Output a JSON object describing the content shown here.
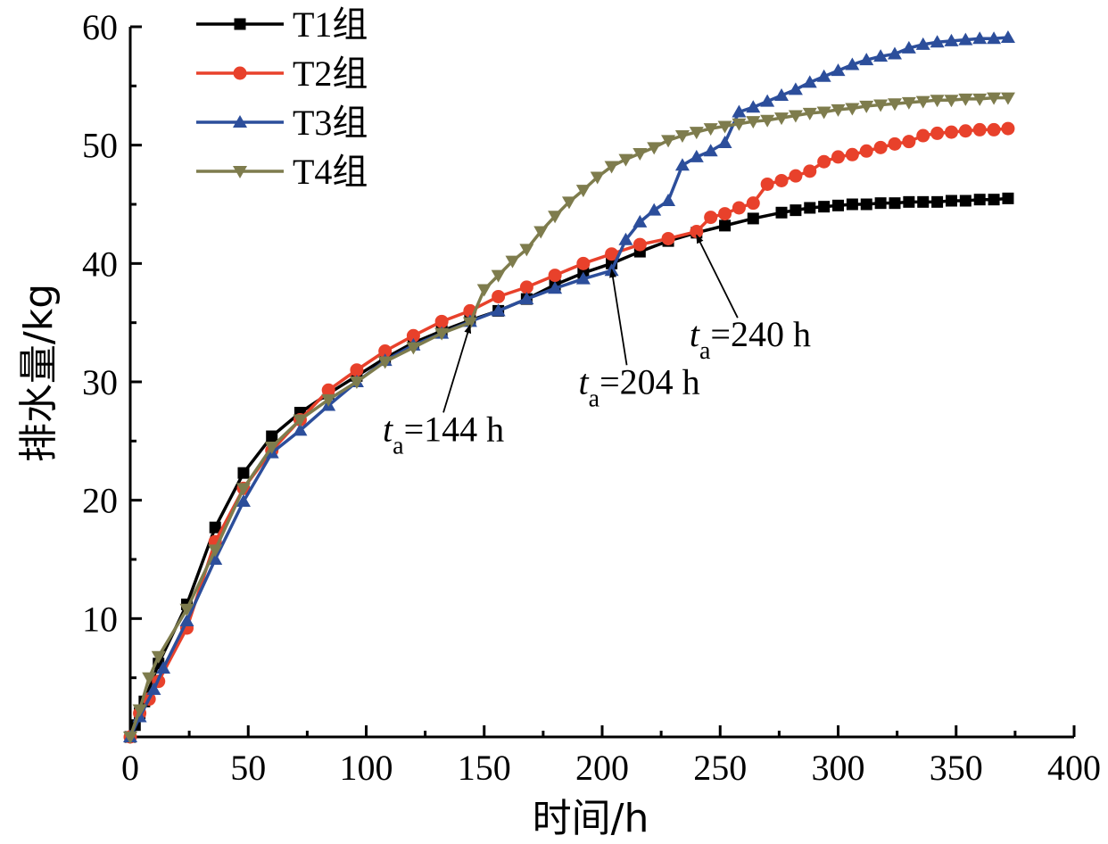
{
  "chart_data": {
    "type": "line",
    "title": "",
    "xlabel": "时间/h",
    "ylabel": "排水量/kg",
    "xlim": [
      0,
      400
    ],
    "ylim": [
      0,
      60
    ],
    "xticks": [
      0,
      50,
      100,
      150,
      200,
      250,
      300,
      350,
      400
    ],
    "yticks": [
      10,
      20,
      30,
      40,
      50,
      60
    ],
    "grid": false,
    "legend_position": "top-left",
    "series": [
      {
        "name": "T1组",
        "color": "#000000",
        "marker": "square",
        "x": [
          0,
          2,
          4,
          6,
          12,
          24,
          36,
          48,
          60,
          72,
          84,
          96,
          108,
          120,
          132,
          144,
          156,
          168,
          180,
          192,
          204,
          216,
          228,
          240,
          252,
          264,
          276,
          282,
          288,
          294,
          300,
          306,
          312,
          318,
          324,
          330,
          336,
          342,
          348,
          354,
          360,
          366,
          372
        ],
        "y": [
          0,
          1.0,
          2.0,
          3.0,
          6.2,
          11.2,
          17.7,
          22.3,
          25.4,
          27.4,
          29.0,
          30.5,
          32.0,
          33.3,
          34.3,
          35.2,
          36.0,
          37.0,
          38.2,
          39.2,
          40.0,
          41.0,
          41.9,
          42.6,
          43.2,
          43.8,
          44.3,
          44.5,
          44.7,
          44.8,
          44.9,
          45.0,
          45.0,
          45.1,
          45.1,
          45.2,
          45.2,
          45.2,
          45.3,
          45.3,
          45.4,
          45.4,
          45.5
        ]
      },
      {
        "name": "T2组",
        "color": "#e8412b",
        "marker": "circle",
        "x": [
          0,
          4,
          8,
          12,
          24,
          36,
          48,
          60,
          72,
          84,
          96,
          108,
          120,
          132,
          144,
          156,
          168,
          180,
          192,
          204,
          216,
          228,
          240,
          246,
          252,
          258,
          264,
          270,
          276,
          282,
          288,
          294,
          300,
          306,
          312,
          318,
          324,
          330,
          336,
          342,
          348,
          354,
          360,
          366,
          372
        ],
        "y": [
          0,
          2.0,
          3.2,
          4.7,
          9.2,
          16.5,
          21.0,
          24.2,
          26.8,
          29.3,
          31.0,
          32.6,
          33.9,
          35.1,
          36.0,
          37.2,
          38.0,
          39.0,
          40.0,
          40.8,
          41.6,
          42.1,
          42.7,
          43.9,
          44.2,
          44.7,
          45.1,
          46.7,
          47.0,
          47.4,
          47.8,
          48.6,
          49.0,
          49.2,
          49.5,
          49.8,
          50.1,
          50.3,
          50.8,
          51.0,
          51.1,
          51.2,
          51.3,
          51.3,
          51.4
        ]
      },
      {
        "name": "T3组",
        "color": "#2c4e9b",
        "marker": "triangle-up",
        "x": [
          0,
          4,
          10,
          14,
          24,
          36,
          48,
          60,
          72,
          84,
          96,
          108,
          120,
          132,
          144,
          156,
          168,
          180,
          192,
          204,
          210,
          216,
          222,
          228,
          234,
          240,
          246,
          252,
          258,
          264,
          270,
          276,
          282,
          288,
          294,
          300,
          306,
          312,
          318,
          324,
          330,
          336,
          342,
          348,
          354,
          360,
          366,
          372
        ],
        "y": [
          0,
          1.7,
          4.0,
          5.8,
          9.8,
          15.0,
          19.9,
          24.0,
          25.9,
          28.0,
          30.0,
          31.8,
          33.1,
          34.1,
          35.1,
          36.0,
          37.0,
          37.9,
          38.7,
          39.4,
          42.0,
          43.5,
          44.5,
          45.3,
          48.3,
          49.0,
          49.5,
          50.2,
          52.8,
          53.2,
          53.7,
          54.2,
          54.7,
          55.3,
          55.8,
          56.3,
          56.8,
          57.2,
          57.5,
          57.7,
          58.2,
          58.5,
          58.7,
          58.8,
          58.9,
          59.0,
          59.0,
          59.1
        ]
      },
      {
        "name": "T4组",
        "color": "#7e7c4d",
        "marker": "triangle-down",
        "x": [
          0,
          4,
          8,
          12,
          24,
          36,
          48,
          60,
          72,
          84,
          96,
          108,
          120,
          132,
          144,
          150,
          156,
          162,
          168,
          174,
          180,
          186,
          192,
          198,
          204,
          210,
          216,
          222,
          228,
          234,
          240,
          246,
          252,
          258,
          264,
          270,
          276,
          282,
          288,
          294,
          300,
          306,
          312,
          318,
          324,
          330,
          336,
          342,
          348,
          354,
          360,
          366,
          372
        ],
        "y": [
          0,
          2.3,
          5.0,
          6.8,
          10.8,
          15.8,
          21.0,
          24.5,
          26.8,
          28.5,
          30.0,
          31.7,
          32.9,
          34.1,
          35.0,
          37.8,
          39.0,
          40.2,
          41.2,
          42.7,
          44.0,
          45.2,
          46.2,
          47.3,
          48.2,
          48.8,
          49.3,
          49.8,
          50.4,
          50.8,
          51.1,
          51.4,
          51.6,
          51.8,
          52.0,
          52.1,
          52.3,
          52.5,
          52.7,
          52.8,
          53.0,
          53.1,
          53.3,
          53.4,
          53.5,
          53.6,
          53.7,
          53.8,
          53.8,
          53.9,
          53.9,
          54.0,
          54.0
        ]
      }
    ],
    "annotations": [
      {
        "base": "t",
        "sub": "a",
        "rest": "=144 h",
        "point": [
          144,
          35.1
        ],
        "text_at": [
          107,
          25.0
        ]
      },
      {
        "base": "t",
        "sub": "a",
        "rest": "=204 h",
        "point": [
          204,
          39.8
        ],
        "text_at": [
          190,
          29.0
        ]
      },
      {
        "base": "t",
        "sub": "a",
        "rest": "=240 h",
        "point": [
          240,
          42.7
        ],
        "text_at": [
          237,
          33.0
        ]
      }
    ]
  }
}
